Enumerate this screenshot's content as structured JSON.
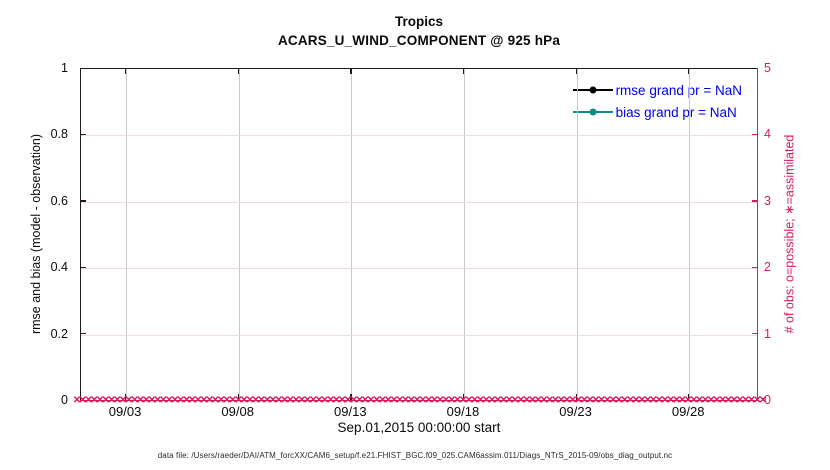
{
  "title": {
    "line1": "Tropics",
    "line2": "ACARS_U_WIND_COMPONENT @ 925 hPa"
  },
  "axes": {
    "left": {
      "label": "rmse and bias (model - observation)",
      "ticks": [
        "0",
        "0.2",
        "0.4",
        "0.6",
        "0.8",
        "1"
      ],
      "color": "#0a0a0a"
    },
    "right": {
      "label": "# of obs: o=possible; ∗=assimilated",
      "ticks": [
        "0",
        "1",
        "2",
        "3",
        "4",
        "5"
      ],
      "color": "#D8195E"
    },
    "x": {
      "label": "Sep.01,2015 00:00:00 start",
      "ticks": [
        {
          "day": 3,
          "label": "09/03"
        },
        {
          "day": 8,
          "label": "09/08"
        },
        {
          "day": 13,
          "label": "09/13"
        },
        {
          "day": 18,
          "label": "09/18"
        },
        {
          "day": 23,
          "label": "09/23"
        },
        {
          "day": 28,
          "label": "09/28"
        }
      ],
      "range_days": [
        1,
        31.1
      ]
    }
  },
  "legend": {
    "items": [
      {
        "label": "rmse grand pr = NaN",
        "color": "#000000"
      },
      {
        "label": "bias grand pr = NaN",
        "color": "#0E8C84"
      }
    ],
    "text_color": "#0000F0"
  },
  "caption": "data file: /Users/raeder/DAI/ATM_forcXX/CAM6_setup/f.e21.FHIST_BGC.f09_025.CAM6assim.011/Diags_NTrS_2015-09/obs_diag_output.nc",
  "colors": {
    "accent_pink": "#D8195E",
    "teal": "#0E8C84",
    "legend_blue": "#0000F0",
    "grid_h_pink": "#F5D9E1",
    "grid_v_gray": "#C9CACE",
    "axis_black": "#1a1a1a"
  },
  "chart_data": {
    "type": "line",
    "title": "Tropics",
    "subtitle": "ACARS_U_WIND_COMPONENT @ 925 hPa",
    "xlabel": "Sep.01,2015 00:00:00 start",
    "ylabel_left": "rmse and bias (model - observation)",
    "ylabel_right": "# of obs: o=possible; ∗=assimilated",
    "ylim_left": [
      0,
      1
    ],
    "ylim_right": [
      0,
      5
    ],
    "x_range_days": [
      1,
      31.1
    ],
    "x_tick_labels": [
      "09/03",
      "09/08",
      "09/13",
      "09/18",
      "09/23",
      "09/28"
    ],
    "grid": true,
    "legend_position": "top-right",
    "series": [
      {
        "name": "rmse grand pr",
        "axis": "left",
        "color": "#000000",
        "marker": "filled-circle",
        "value": "NaN",
        "points_plotted": 0
      },
      {
        "name": "bias grand pr",
        "axis": "left",
        "color": "#0E8C84",
        "marker": "filled-circle",
        "value": "NaN",
        "points_plotted": 0
      },
      {
        "name": "# of obs possible (o)",
        "axis": "right",
        "color": "#D8195E",
        "marker": "o",
        "constant_value": 0
      },
      {
        "name": "# of obs assimilated (x)",
        "axis": "right",
        "color": "#D8195E",
        "marker": "x",
        "constant_value": 0
      }
    ],
    "n_time_bins": 120
  }
}
